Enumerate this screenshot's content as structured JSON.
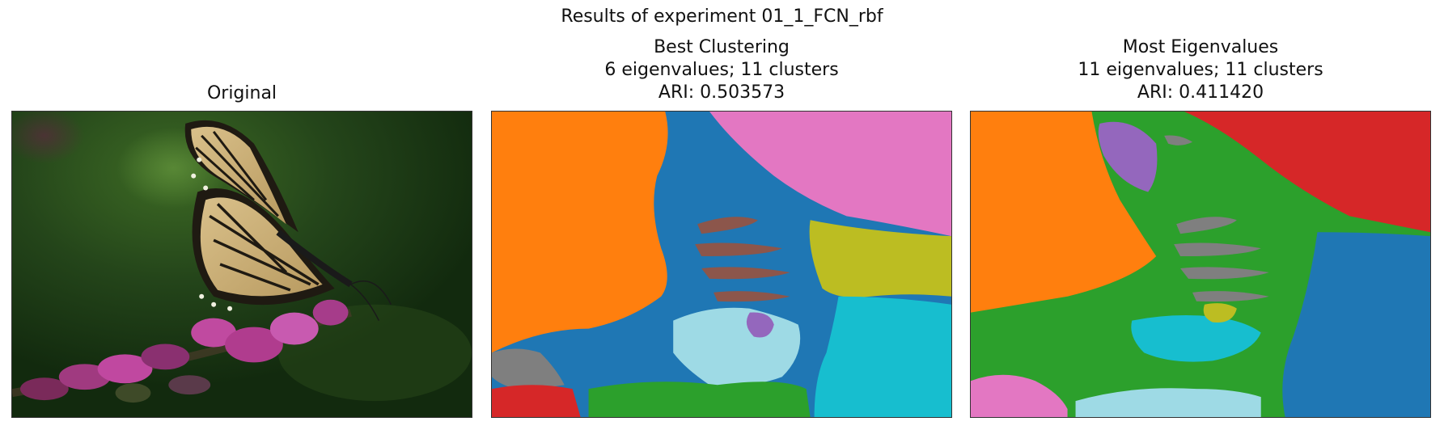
{
  "figure": {
    "suptitle": "Results of experiment 01_1_FCN_rbf"
  },
  "panels": [
    {
      "id": "original",
      "title_lines": [
        "Original"
      ]
    },
    {
      "id": "best",
      "title_lines": [
        "Best Clustering",
        "6 eigenvalues; 11 clusters",
        "ARI: 0.503573"
      ]
    },
    {
      "id": "most",
      "title_lines": [
        "Most Eigenvalues",
        "11 eigenvalues; 11 clusters",
        "ARI: 0.411420"
      ]
    }
  ],
  "colors": {
    "orange": "#ff7f0e",
    "blue": "#1f77b4",
    "green": "#2ca02c",
    "red": "#d62728",
    "purple": "#9467bd",
    "brown": "#8c564b",
    "pink": "#e377c2",
    "gray": "#7f7f7f",
    "olive": "#bcbd22",
    "cyan": "#17becf",
    "lightblue": "#9edae5",
    "dark_green_bg": "#1c3a12"
  }
}
